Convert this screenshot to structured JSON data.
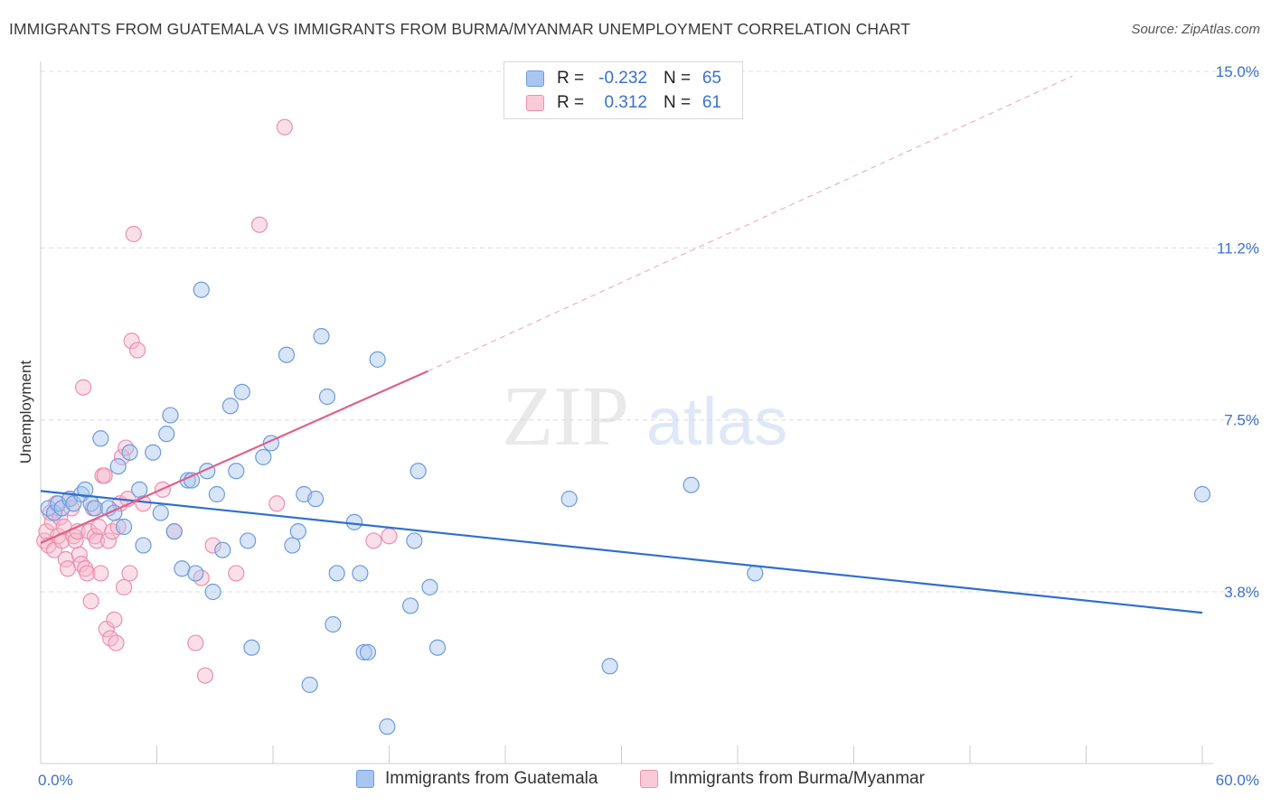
{
  "title": "IMMIGRANTS FROM GUATEMALA VS IMMIGRANTS FROM BURMA/MYANMAR UNEMPLOYMENT CORRELATION CHART",
  "source": "Source: ZipAtlas.com",
  "watermark": {
    "zip": "ZIP",
    "atlas": "atlas"
  },
  "colors": {
    "blue_fill": "#a9c6f0",
    "blue_stroke": "#6b9be0",
    "blue_line": "#2f6fd0",
    "pink_fill": "#f6b8cb",
    "pink_stroke": "#ec8fae",
    "pink_line": "#e0608a",
    "axis_text": "#3b6fd6",
    "grid": "#dcdcdc"
  },
  "legend": {
    "rows": [
      {
        "r_label": "R =",
        "r_value": "-0.232",
        "n_label": "N =",
        "n_value": "65"
      },
      {
        "r_label": "R =",
        "r_value": "0.312",
        "n_label": "N =",
        "n_value": "61"
      }
    ]
  },
  "bottom_legend": [
    "Immigrants from Guatemala",
    "Immigrants from Burma/Myanmar"
  ],
  "chart_data": {
    "type": "scatter",
    "title": "IMMIGRANTS FROM GUATEMALA VS IMMIGRANTS FROM BURMA/MYANMAR UNEMPLOYMENT CORRELATION CHART",
    "xlabel": "",
    "ylabel": "Unemployment",
    "xlim": [
      0,
      60
    ],
    "ylim": [
      0,
      15.8
    ],
    "x_tick_labels": [
      "0.0%",
      "60.0%"
    ],
    "y_ticks": [
      3.8,
      7.5,
      11.2,
      15.0
    ],
    "y_tick_labels": [
      "3.8%",
      "7.5%",
      "11.2%",
      "15.0%"
    ],
    "grid": true,
    "legend_position": "top-center",
    "series": [
      {
        "name": "Immigrants from Guatemala",
        "color": "#6b9be0",
        "trend": {
          "x": [
            0,
            60
          ],
          "y": [
            5.97,
            3.35
          ]
        },
        "points": [
          [
            0.4,
            5.6
          ],
          [
            0.7,
            5.5
          ],
          [
            0.9,
            5.7
          ],
          [
            1.1,
            5.6
          ],
          [
            1.5,
            5.8
          ],
          [
            1.7,
            5.7
          ],
          [
            2.1,
            5.9
          ],
          [
            2.3,
            6.0
          ],
          [
            2.6,
            5.7
          ],
          [
            2.8,
            5.6
          ],
          [
            3.1,
            7.1
          ],
          [
            3.5,
            5.6
          ],
          [
            3.8,
            5.5
          ],
          [
            4.0,
            6.5
          ],
          [
            4.3,
            5.2
          ],
          [
            4.6,
            6.8
          ],
          [
            5.1,
            6.0
          ],
          [
            5.3,
            4.8
          ],
          [
            5.8,
            6.8
          ],
          [
            6.2,
            5.5
          ],
          [
            6.5,
            7.2
          ],
          [
            6.7,
            7.6
          ],
          [
            6.9,
            5.1
          ],
          [
            7.3,
            4.3
          ],
          [
            7.6,
            6.2
          ],
          [
            7.8,
            6.2
          ],
          [
            8.0,
            4.2
          ],
          [
            8.3,
            10.3
          ],
          [
            8.6,
            6.4
          ],
          [
            8.9,
            3.8
          ],
          [
            9.1,
            5.9
          ],
          [
            9.4,
            4.7
          ],
          [
            9.8,
            7.8
          ],
          [
            10.1,
            6.4
          ],
          [
            10.4,
            8.1
          ],
          [
            10.7,
            4.9
          ],
          [
            10.9,
            2.6
          ],
          [
            11.5,
            6.7
          ],
          [
            11.9,
            7.0
          ],
          [
            12.7,
            8.9
          ],
          [
            13.0,
            4.8
          ],
          [
            13.3,
            5.1
          ],
          [
            13.6,
            5.9
          ],
          [
            13.9,
            1.8
          ],
          [
            14.2,
            5.8
          ],
          [
            14.5,
            9.3
          ],
          [
            14.8,
            8.0
          ],
          [
            15.1,
            3.1
          ],
          [
            15.3,
            4.2
          ],
          [
            16.2,
            5.3
          ],
          [
            16.5,
            4.2
          ],
          [
            16.7,
            2.5
          ],
          [
            16.9,
            2.5
          ],
          [
            17.4,
            8.8
          ],
          [
            17.9,
            0.9
          ],
          [
            19.1,
            3.5
          ],
          [
            19.3,
            4.9
          ],
          [
            19.5,
            6.4
          ],
          [
            20.1,
            3.9
          ],
          [
            20.5,
            2.6
          ],
          [
            27.3,
            5.8
          ],
          [
            29.4,
            2.2
          ],
          [
            33.6,
            6.1
          ],
          [
            36.9,
            4.2
          ],
          [
            60.0,
            5.9
          ]
        ]
      },
      {
        "name": "Immigrants from Burma/Myanmar",
        "color": "#ec8fae",
        "trend": {
          "x": [
            0,
            20
          ],
          "y": [
            4.85,
            8.55
          ],
          "extension_x": [
            20,
            53.3
          ],
          "extension_y": [
            8.55,
            14.9
          ]
        },
        "points": [
          [
            0.2,
            4.9
          ],
          [
            0.3,
            5.1
          ],
          [
            0.4,
            4.8
          ],
          [
            0.5,
            5.5
          ],
          [
            0.6,
            5.3
          ],
          [
            0.7,
            4.7
          ],
          [
            0.8,
            5.7
          ],
          [
            0.9,
            5.0
          ],
          [
            1.0,
            5.4
          ],
          [
            1.1,
            4.9
          ],
          [
            1.2,
            5.2
          ],
          [
            1.3,
            4.5
          ],
          [
            1.4,
            4.3
          ],
          [
            1.5,
            5.8
          ],
          [
            1.6,
            5.6
          ],
          [
            1.7,
            5.0
          ],
          [
            1.8,
            4.9
          ],
          [
            1.9,
            5.1
          ],
          [
            2.0,
            4.6
          ],
          [
            2.1,
            4.4
          ],
          [
            2.2,
            8.2
          ],
          [
            2.3,
            4.3
          ],
          [
            2.4,
            4.2
          ],
          [
            2.5,
            5.1
          ],
          [
            2.6,
            3.6
          ],
          [
            2.7,
            5.6
          ],
          [
            2.8,
            5.0
          ],
          [
            2.9,
            4.9
          ],
          [
            3.0,
            5.2
          ],
          [
            3.1,
            4.2
          ],
          [
            3.2,
            6.3
          ],
          [
            3.3,
            6.3
          ],
          [
            3.4,
            3.0
          ],
          [
            3.5,
            4.9
          ],
          [
            3.6,
            2.8
          ],
          [
            3.7,
            5.1
          ],
          [
            3.8,
            3.2
          ],
          [
            3.9,
            2.7
          ],
          [
            4.0,
            5.2
          ],
          [
            4.1,
            5.7
          ],
          [
            4.2,
            6.7
          ],
          [
            4.3,
            3.9
          ],
          [
            4.4,
            6.9
          ],
          [
            4.5,
            5.8
          ],
          [
            4.6,
            4.2
          ],
          [
            4.7,
            9.2
          ],
          [
            4.8,
            11.5
          ],
          [
            5.0,
            9.0
          ],
          [
            5.3,
            5.7
          ],
          [
            6.3,
            6.0
          ],
          [
            6.9,
            5.1
          ],
          [
            8.0,
            2.7
          ],
          [
            8.3,
            4.1
          ],
          [
            8.5,
            2.0
          ],
          [
            8.9,
            4.8
          ],
          [
            10.1,
            4.2
          ],
          [
            11.3,
            11.7
          ],
          [
            12.2,
            5.7
          ],
          [
            12.6,
            13.8
          ],
          [
            17.2,
            4.9
          ],
          [
            18.0,
            5.0
          ]
        ]
      }
    ]
  }
}
